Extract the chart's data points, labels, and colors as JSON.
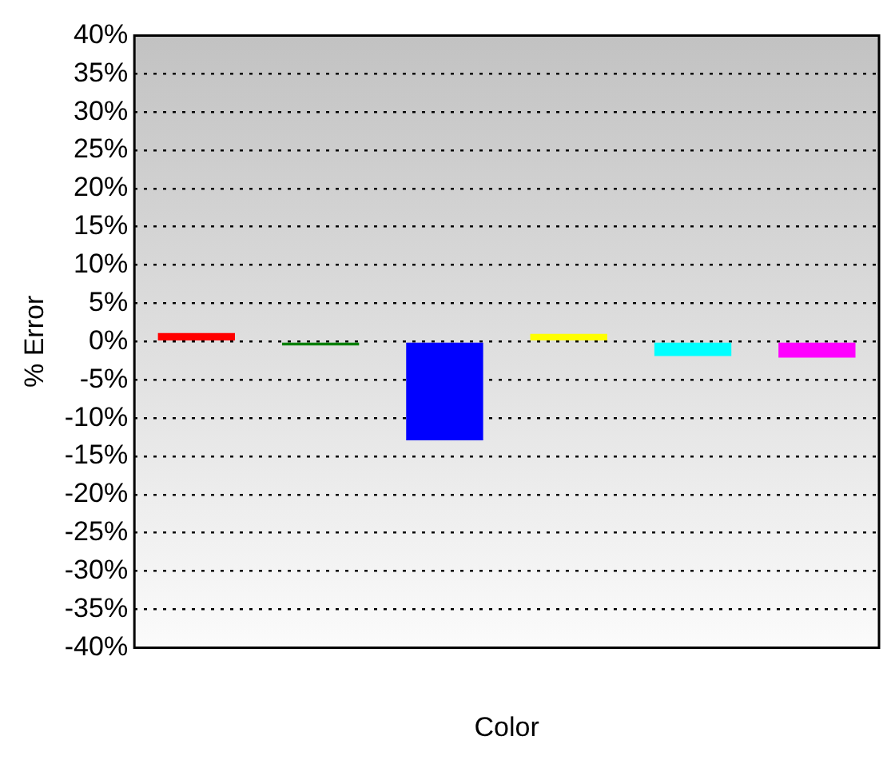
{
  "chart_data": {
    "type": "bar",
    "xlabel": "Color",
    "ylabel": "% Error",
    "categories": [
      null,
      null,
      null,
      null,
      null,
      null
    ],
    "values": [
      1.1,
      -0.5,
      -12.9,
      1.0,
      -1.9,
      -2.1
    ],
    "colors": [
      "#ff0000",
      "#008000",
      "#0000ff",
      "#ffff00",
      "#00ffff",
      "#ff00ff"
    ],
    "ylim": [
      -40,
      40
    ],
    "yticks": [
      {
        "value": -40,
        "label": "-40%"
      },
      {
        "value": -35,
        "label": "-35%"
      },
      {
        "value": -30,
        "label": "-30%"
      },
      {
        "value": -25,
        "label": "-25%"
      },
      {
        "value": -20,
        "label": "-20%"
      },
      {
        "value": -15,
        "label": "-15%"
      },
      {
        "value": -10,
        "label": "-10%"
      },
      {
        "value": -5,
        "label": "-5%"
      },
      {
        "value": 0,
        "label": "0%"
      },
      {
        "value": 5,
        "label": "5%"
      },
      {
        "value": 10,
        "label": "10%"
      },
      {
        "value": 15,
        "label": "15%"
      },
      {
        "value": 20,
        "label": "20%"
      },
      {
        "value": 25,
        "label": "25%"
      },
      {
        "value": 30,
        "label": "30%"
      },
      {
        "value": 35,
        "label": "35%"
      },
      {
        "value": 40,
        "label": "40%"
      }
    ],
    "grid": "y",
    "legend": false
  }
}
